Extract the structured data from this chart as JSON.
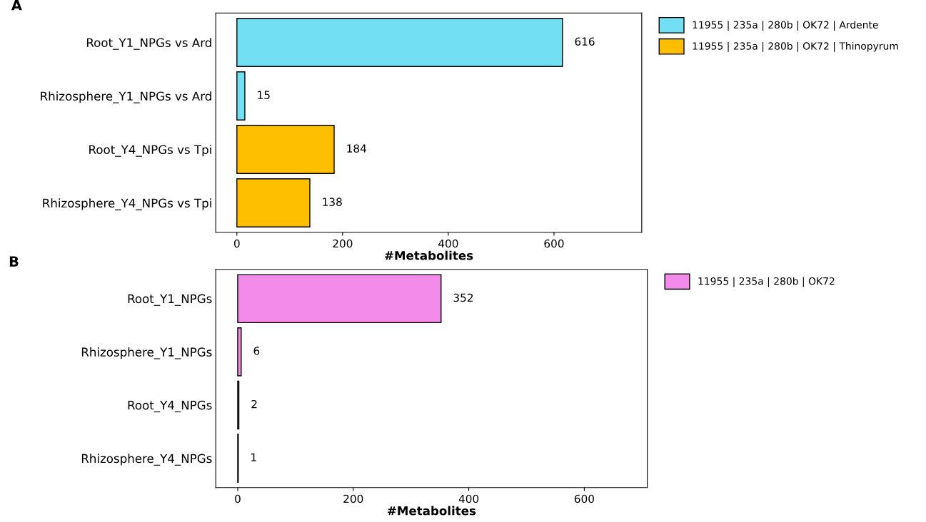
{
  "chart_data": [
    {
      "type": "bar",
      "title": "A",
      "orientation": "horizontal",
      "xlabel": "#Metabolites",
      "categories": [
        "Root_Y1_NPGs vs Ard",
        "Rhizosphere_Y1_NPGs vs Ard",
        "Root_Y4_NPGs vs Tpi",
        "Rhizosphere_Y4_NPGs vs Tpi"
      ],
      "series": [
        {
          "name": "11955 | 235a | 280b | OK72 | Ardente",
          "color": "#72dff3",
          "values": [
            616,
            15,
            null,
            null
          ]
        },
        {
          "name": "11955 | 235a | 280b | OK72 | Thinopyrum",
          "color": "#fdbf00",
          "values": [
            null,
            null,
            184,
            138
          ]
        }
      ],
      "xlim": [
        -40,
        766
      ],
      "xticks": [
        0,
        200,
        400,
        600
      ],
      "data_labels": true,
      "grid": false,
      "legend": "top right"
    },
    {
      "type": "bar",
      "title": "B",
      "orientation": "horizontal",
      "xlabel": "#Metabolites",
      "categories": [
        "Root_Y1_NPGs",
        "Rhizosphere_Y1_NPGs",
        "Root_Y4_NPGs",
        "Rhizosphere_Y4_NPGs"
      ],
      "series": [
        {
          "name": "11955 | 235a | 280b | OK72",
          "color": "#f38bea",
          "values": [
            352,
            6,
            2,
            1
          ]
        }
      ],
      "xlim": [
        -38,
        709
      ],
      "xticks": [
        0,
        200,
        400,
        600
      ],
      "data_labels": true,
      "grid": false,
      "legend": "top right"
    }
  ]
}
